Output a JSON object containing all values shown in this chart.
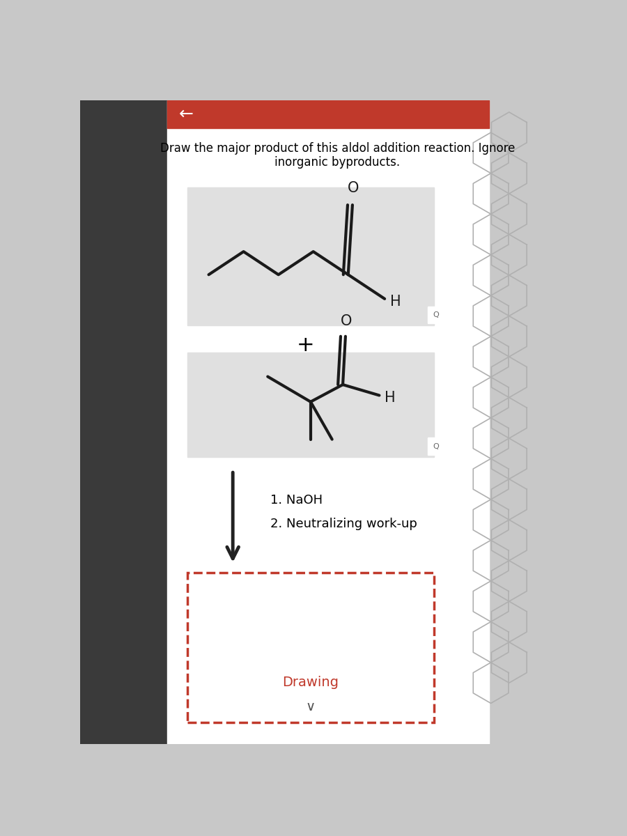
{
  "bg_outer_left": "#3a3a3a",
  "bg_main": "#c8c8c8",
  "card_color": "#ffffff",
  "mol_box_color": "#e0e0e0",
  "mol_box_edge": "#bbbbbb",
  "header_color": "#c0392b",
  "title_line1": "Draw the major product of this aldol addition reaction. Ignore",
  "title_line2": "inorganic byproducts.",
  "conditions_line1": "1. NaOH",
  "conditions_line2": "2. Neutralizing work-up",
  "drawing_label": "Drawing",
  "drawing_label_color": "#c0392b",
  "plus_sign": "+",
  "H_label": "H",
  "O_label": "O",
  "mol_color": "#1a1a1a",
  "hex_color": "#b0b0b0",
  "arrow_color": "#222222",
  "back_arrow": "←",
  "chevron": "∨"
}
